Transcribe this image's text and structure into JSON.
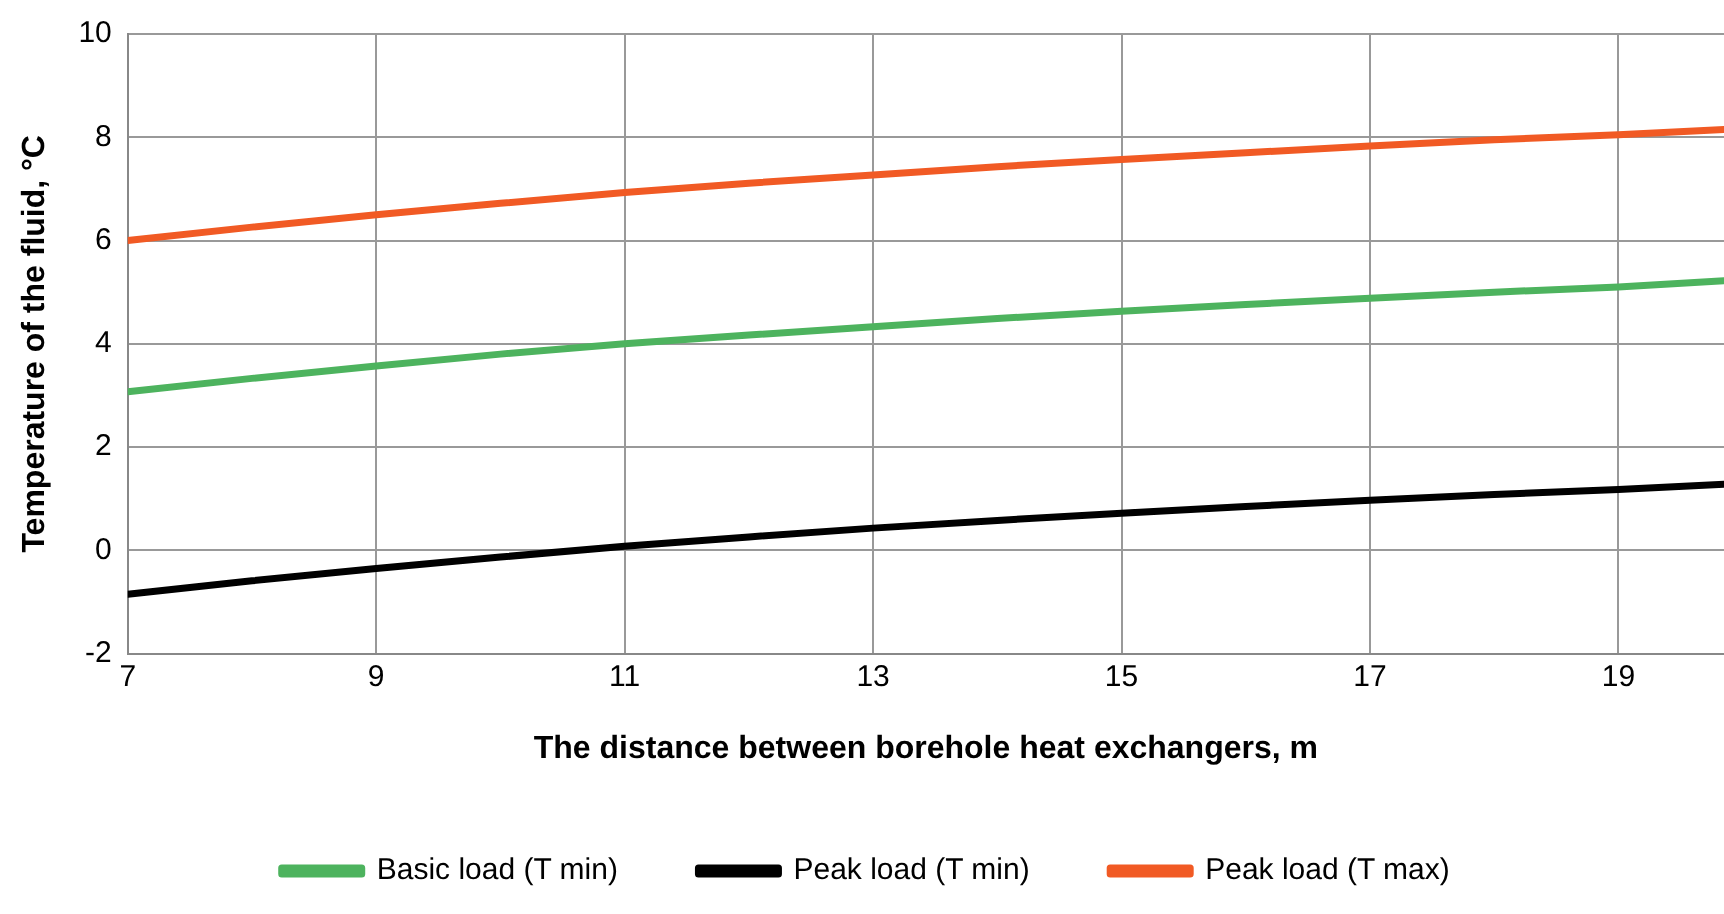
{
  "chart_data": {
    "type": "line",
    "xlabel": "The distance between borehole heat exchangers, m",
    "ylabel": "Temperature of the fluid, °C",
    "x": [
      7,
      8,
      9,
      10,
      11,
      12,
      13,
      14,
      15,
      16,
      17,
      18,
      19,
      19.85
    ],
    "xlim": [
      7,
      19.85
    ],
    "xticks": [
      7,
      9,
      11,
      13,
      15,
      17,
      19
    ],
    "ylim": [
      -2,
      10
    ],
    "yticks": [
      -2,
      0,
      2,
      4,
      6,
      8,
      10
    ],
    "grid": true,
    "legend": "bottom",
    "marker": "none",
    "line_style": "solid",
    "series": [
      {
        "name": "Basic load (T min)",
        "color": "#4db35e",
        "values": [
          3.07,
          3.33,
          3.57,
          3.8,
          4.0,
          4.17,
          4.33,
          4.49,
          4.63,
          4.76,
          4.88,
          5.0,
          5.1,
          5.22
        ]
      },
      {
        "name": "Peak load (T min)",
        "color": "#000000",
        "values": [
          -0.85,
          -0.59,
          -0.35,
          -0.13,
          0.08,
          0.26,
          0.43,
          0.58,
          0.72,
          0.85,
          0.97,
          1.08,
          1.18,
          1.28
        ]
      },
      {
        "name": "Peak load (T max)",
        "color": "#f15a24",
        "values": [
          6.0,
          6.26,
          6.5,
          6.72,
          6.93,
          7.11,
          7.27,
          7.43,
          7.57,
          7.7,
          7.83,
          7.95,
          8.05,
          8.15
        ]
      }
    ]
  }
}
